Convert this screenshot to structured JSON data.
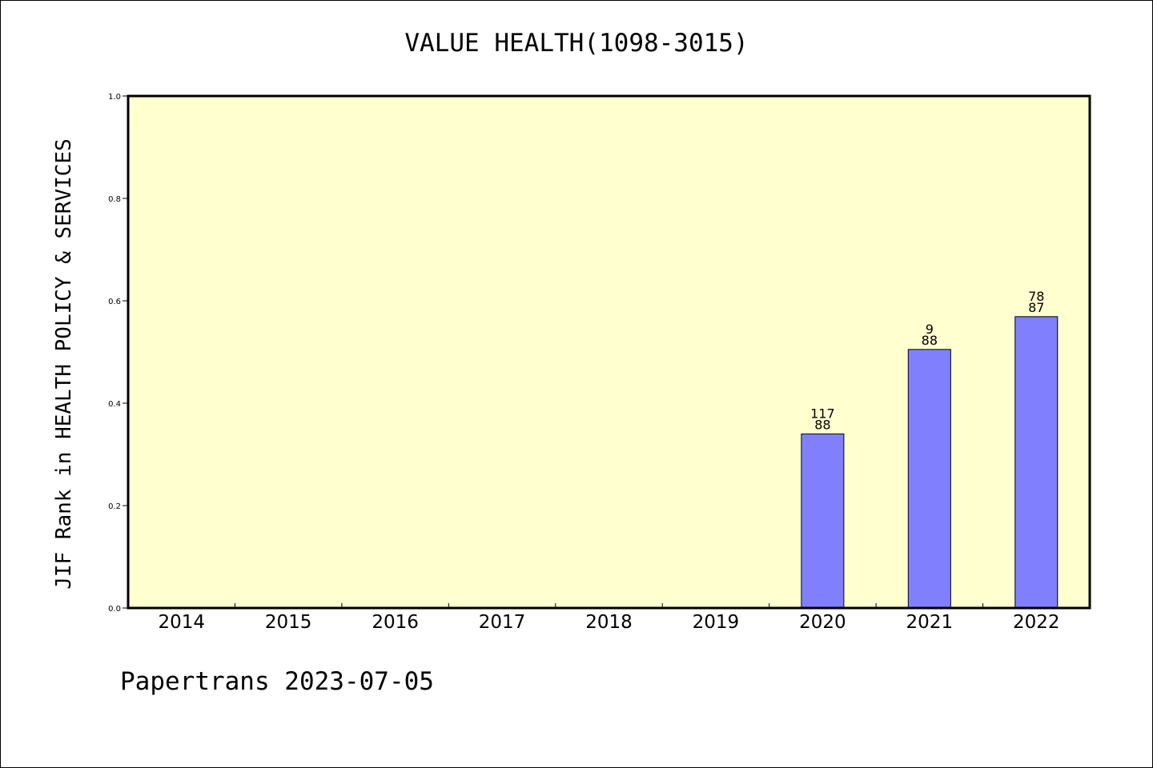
{
  "chart_data": {
    "type": "bar",
    "title": "VALUE HEALTH(1098-3015)",
    "xlabel": "",
    "ylabel": "JIF Rank in HEALTH POLICY & SERVICES",
    "ylim": [
      0,
      1.0
    ],
    "yticks": [
      "0.0",
      "0.2",
      "0.4",
      "0.6",
      "0.8",
      "1.0"
    ],
    "categories": [
      "2014",
      "2015",
      "2016",
      "2017",
      "2018",
      "2019",
      "2020",
      "2021",
      "2022"
    ],
    "values": [
      null,
      null,
      null,
      null,
      null,
      null,
      0.34,
      0.505,
      0.569
    ],
    "bar_labels": [
      null,
      null,
      null,
      null,
      null,
      null,
      [
        "117",
        "88"
      ],
      [
        "9",
        "88"
      ],
      [
        "78",
        "87"
      ]
    ],
    "grid": false,
    "plot_background": "#ffffd0",
    "bar_color": "#8080ff"
  },
  "footer": "Papertrans 2023-07-05"
}
